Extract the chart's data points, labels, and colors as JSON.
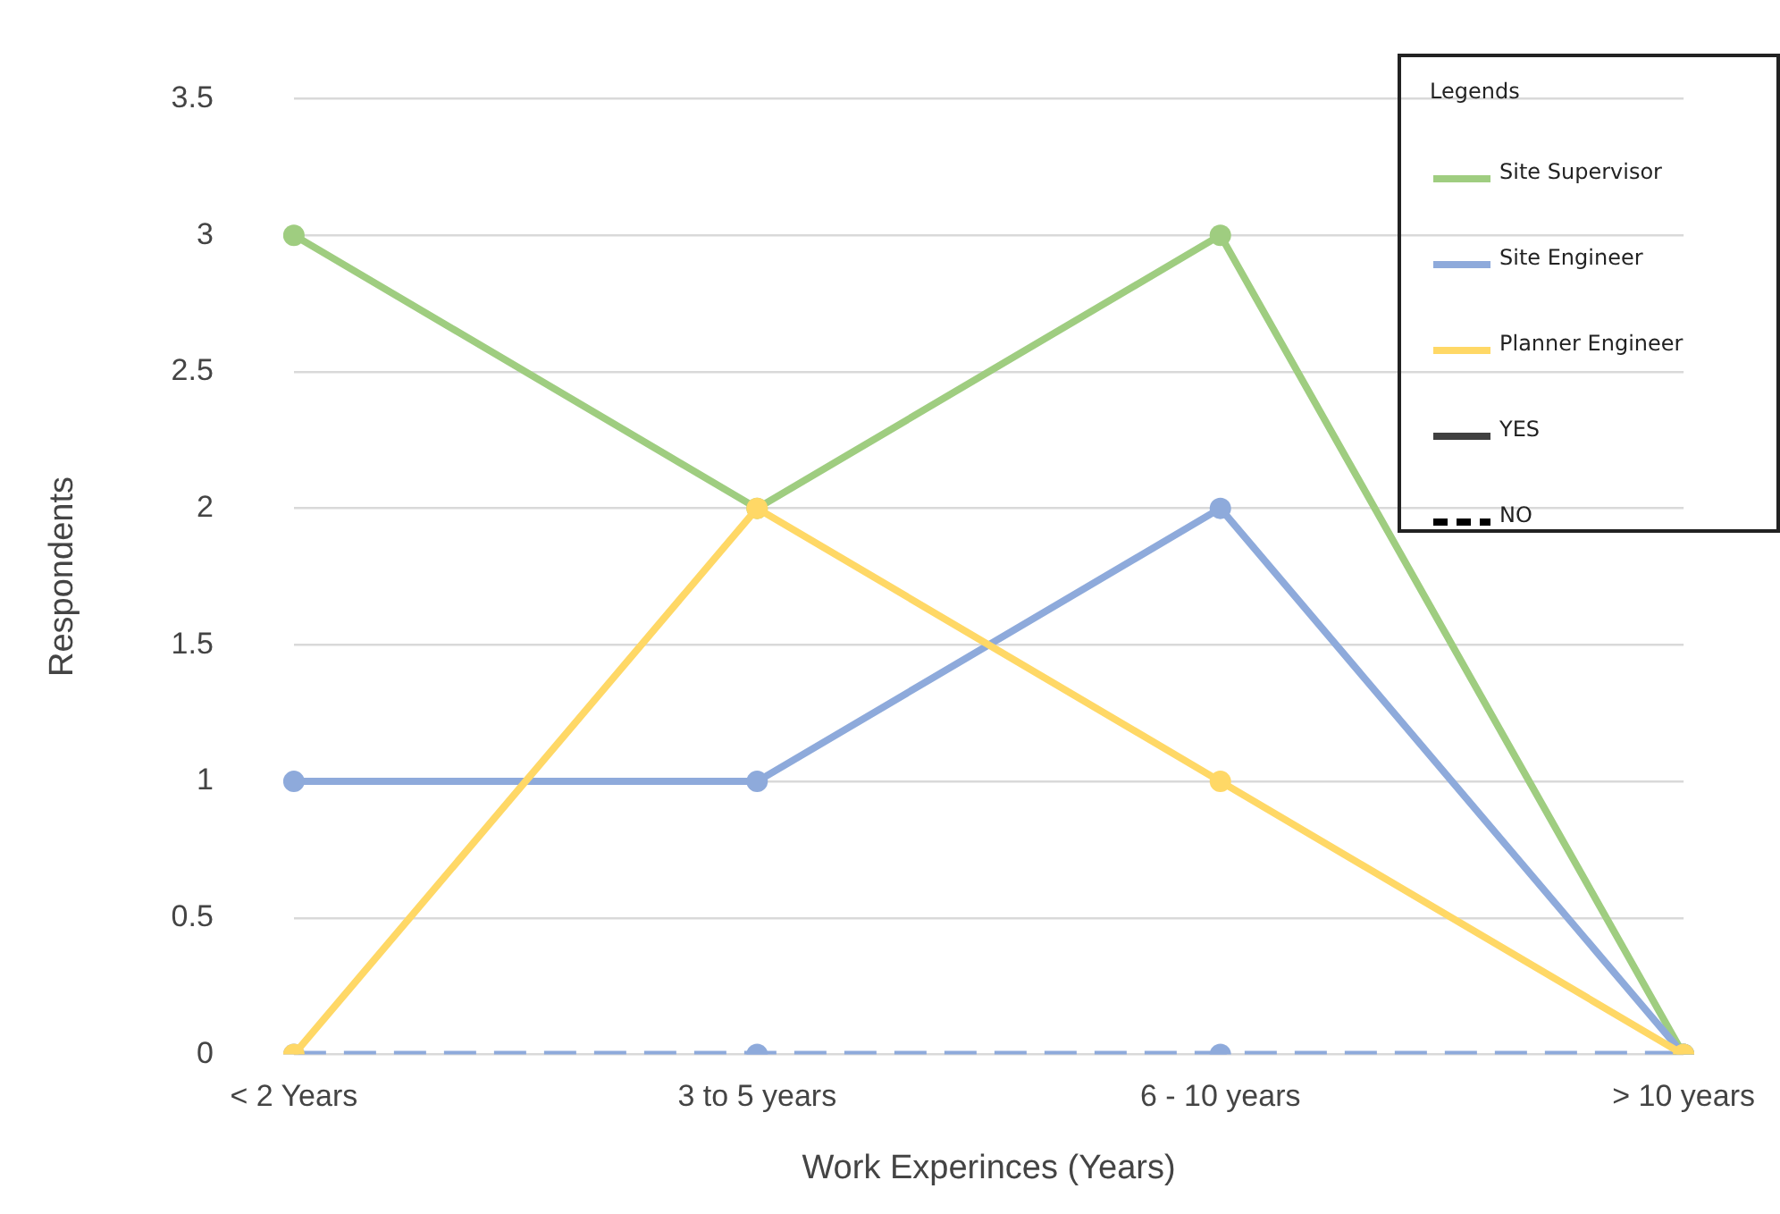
{
  "chart_data": {
    "type": "line",
    "xlabel": "Work Experinces (Years)",
    "ylabel": "Respondents",
    "legend_title": "Legends",
    "categories": [
      "< 2 Years",
      "3 to 5 years",
      "6 - 10 years",
      "> 10 years"
    ],
    "series": [
      {
        "name": "Site Supervisor",
        "color": "#9fcd80",
        "values": [
          3,
          2,
          3,
          0
        ],
        "line_style": "solid"
      },
      {
        "name": "Site Engineer",
        "color": "#8eaadb",
        "values": [
          1,
          1,
          2,
          0
        ],
        "line_style": "solid"
      },
      {
        "name": "Planner Engineer",
        "color": "#ffd866",
        "values": [
          0,
          2,
          1,
          0
        ],
        "line_style": "solid"
      },
      {
        "color": "#8eaadb",
        "values": [
          0,
          0,
          0,
          0
        ],
        "line_style": "dashed"
      },
      {
        "name": "YES",
        "color": "#404040",
        "values": [
          null,
          null,
          null,
          null
        ],
        "line_style": "solid"
      },
      {
        "name": "NO",
        "color": "#000000",
        "values": [
          null,
          null,
          null,
          null
        ],
        "line_style": "dashed"
      }
    ],
    "ylim": [
      0,
      3.5
    ],
    "yticks": [
      0,
      0.5,
      1,
      1.5,
      2,
      2.5,
      3,
      3.5
    ],
    "grid": "y",
    "legend": "top right",
    "marker": "circle"
  }
}
